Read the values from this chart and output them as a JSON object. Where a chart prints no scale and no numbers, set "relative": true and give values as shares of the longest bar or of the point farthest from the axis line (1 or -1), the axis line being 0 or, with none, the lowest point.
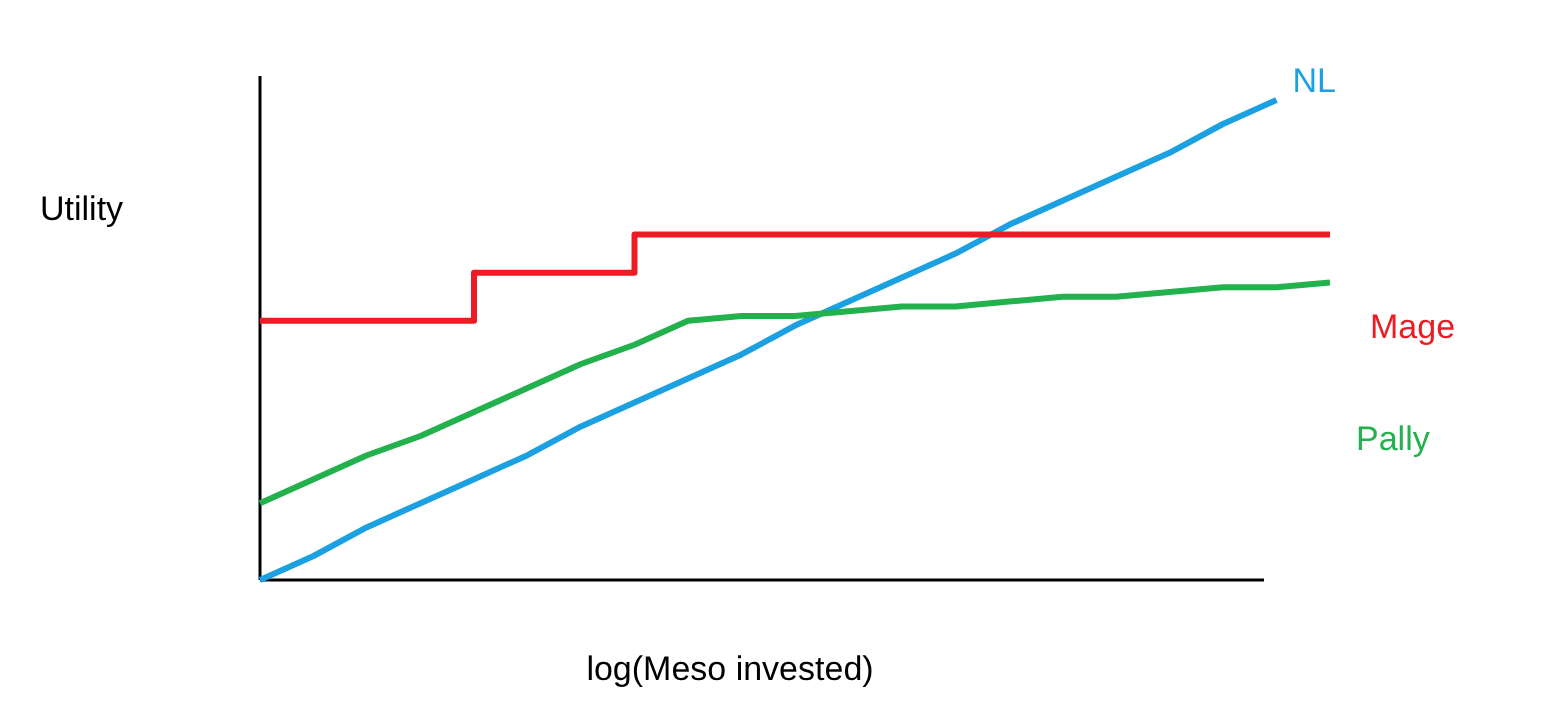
{
  "chart_data": {
    "type": "line",
    "relative": true,
    "xlabel": "log(Meso invested)",
    "ylabel": "Utility",
    "legend": false,
    "categories": [
      null,
      null,
      null,
      null,
      null,
      null,
      null,
      null,
      null,
      null,
      null,
      null,
      null,
      null,
      null,
      null,
      null,
      null,
      null,
      null,
      null
    ],
    "series": [
      {
        "name": "NL",
        "color": "#1ba1e2",
        "values": [
          0,
          0.05,
          0.11,
          0.16,
          0.21,
          0.26,
          0.32,
          0.37,
          0.42,
          0.47,
          0.53,
          0.58,
          0.63,
          0.68,
          0.74,
          0.79,
          0.84,
          0.89,
          0.95,
          1,
          null
        ]
      },
      {
        "name": "Mage",
        "type": "step",
        "color": "#ed1c24",
        "values": [
          0.54,
          0.54,
          0.54,
          0.54,
          0.64,
          0.64,
          0.64,
          0.72,
          0.72,
          0.72,
          0.72,
          0.72,
          0.72,
          0.72,
          0.72,
          0.72,
          0.72,
          0.72,
          0.72,
          0.72,
          0.72
        ]
      },
      {
        "name": "Pally",
        "color": "#22b14c",
        "values": [
          0.16,
          0.21,
          0.26,
          0.3,
          0.35,
          0.4,
          0.45,
          0.49,
          0.54,
          0.55,
          0.55,
          0.56,
          0.57,
          0.57,
          0.58,
          0.59,
          0.59,
          0.6,
          0.61,
          0.61,
          0.62
        ]
      }
    ]
  }
}
